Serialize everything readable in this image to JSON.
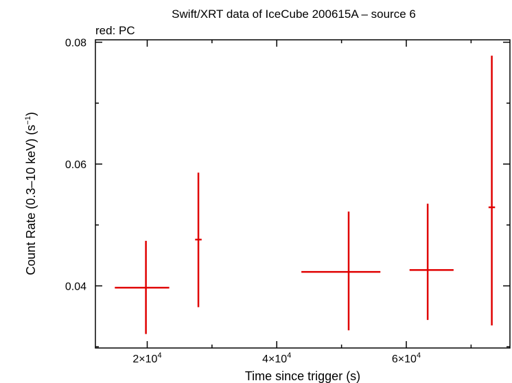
{
  "chart_data": {
    "type": "scatter",
    "title": "Swift/XRT data of IceCube 200615A – source 6",
    "subtitle": "red: PC",
    "xlabel": "Time since trigger (s)",
    "ylabel": "Count Rate (0.3–10 keV) (s",
    "ylabel_sup": "−1",
    "ylabel_end": ")",
    "xlim": [
      12000,
      76000
    ],
    "ylim": [
      0.0298,
      0.0804
    ],
    "log_y": false,
    "grid": false,
    "xticks": [
      {
        "value": 20000,
        "mantissa": "2×10",
        "exp": "4"
      },
      {
        "value": 40000,
        "mantissa": "4×10",
        "exp": "4"
      },
      {
        "value": 60000,
        "mantissa": "6×10",
        "exp": "4"
      }
    ],
    "yticks": [
      {
        "value": 0.04,
        "label": "0.04"
      },
      {
        "value": 0.06,
        "label": "0.06"
      },
      {
        "value": 0.08,
        "label": "0.08"
      }
    ],
    "series": [
      {
        "color": "#e00000",
        "points": [
          {
            "x": 19800,
            "xerr_lo": 4800,
            "xerr_hi": 3600,
            "y": 0.0397,
            "yerr_lo": 0.0076,
            "yerr_hi": 0.0077
          },
          {
            "x": 27900,
            "xerr_lo": 500,
            "xerr_hi": 500,
            "y": 0.0476,
            "yerr_lo": 0.0111,
            "yerr_hi": 0.011
          },
          {
            "x": 51100,
            "xerr_lo": 7300,
            "xerr_hi": 4900,
            "y": 0.0423,
            "yerr_lo": 0.0096,
            "yerr_hi": 0.0099
          },
          {
            "x": 63300,
            "xerr_lo": 2800,
            "xerr_hi": 4000,
            "y": 0.0426,
            "yerr_lo": 0.0082,
            "yerr_hi": 0.0109
          },
          {
            "x": 73200,
            "xerr_lo": 500,
            "xerr_hi": 500,
            "y": 0.0529,
            "yerr_lo": 0.0194,
            "yerr_hi": 0.0249
          }
        ]
      }
    ]
  }
}
